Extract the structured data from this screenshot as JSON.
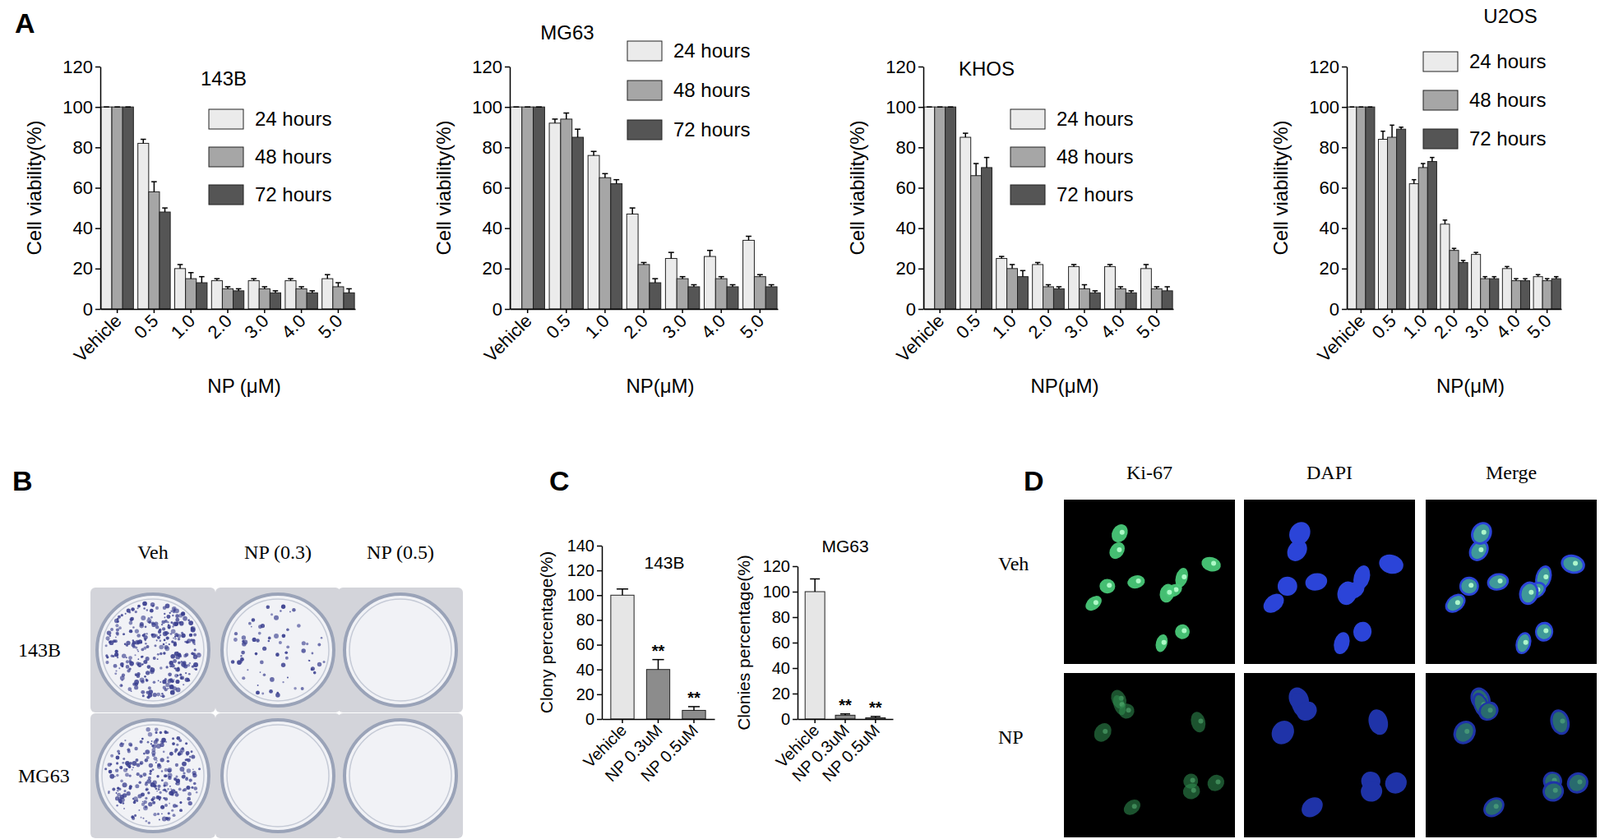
{
  "panel_labels": [
    "A",
    "B",
    "C",
    "D"
  ],
  "chart_data": [
    {
      "type": "bar",
      "title": "143B",
      "x_label": "NP (μM)",
      "y_label": "Cell viability(%)",
      "categories": [
        "Vehicle",
        "0.5",
        "1.0",
        "2.0",
        "3.0",
        "4.0",
        "5.0"
      ],
      "series": [
        {
          "name": "24 hours",
          "color": "#ebebeb",
          "values": [
            100,
            82,
            20,
            14,
            14,
            14,
            15
          ],
          "errors": [
            0,
            2,
            2,
            1,
            1,
            1,
            2
          ]
        },
        {
          "name": "48 hours",
          "color": "#a6a6a6",
          "values": [
            100,
            58,
            15,
            10,
            10,
            10,
            11
          ],
          "errors": [
            0,
            5,
            3,
            1,
            1,
            1,
            2
          ]
        },
        {
          "name": "72 hours",
          "color": "#555555",
          "values": [
            100,
            48,
            13,
            9,
            8,
            8,
            8
          ],
          "errors": [
            0,
            2,
            3,
            1,
            1,
            1,
            2
          ]
        }
      ],
      "ylim": [
        0,
        120
      ],
      "yticks": [
        0,
        20,
        40,
        60,
        80,
        100,
        120
      ],
      "legend": "upper right"
    },
    {
      "type": "bar",
      "title": "MG63",
      "x_label": "NP(μM)",
      "y_label": "Cell viability(%)",
      "categories": [
        "Vehicle",
        "0.5",
        "1.0",
        "2.0",
        "3.0",
        "4.0",
        "5.0"
      ],
      "series": [
        {
          "name": "24 hours",
          "color": "#ebebeb",
          "values": [
            100,
            92,
            76,
            47,
            25,
            26,
            34
          ],
          "errors": [
            0,
            2,
            2,
            3,
            3,
            3,
            2
          ]
        },
        {
          "name": "48 hours",
          "color": "#a6a6a6",
          "values": [
            100,
            94,
            65,
            22,
            15,
            15,
            16
          ],
          "errors": [
            0,
            3,
            2,
            1,
            1,
            1,
            1
          ]
        },
        {
          "name": "72 hours",
          "color": "#555555",
          "values": [
            100,
            85,
            62,
            13,
            11,
            11,
            11
          ],
          "errors": [
            0,
            4,
            2,
            2,
            1,
            1,
            1
          ]
        }
      ],
      "ylim": [
        0,
        120
      ],
      "yticks": [
        0,
        20,
        40,
        60,
        80,
        100,
        120
      ],
      "legend": "upper right"
    },
    {
      "type": "bar",
      "title": "KHOS",
      "x_label": "NP(μM)",
      "y_label": "Cell viability(%)",
      "categories": [
        "Vehicle",
        "0.5",
        "1.0",
        "2.0",
        "3.0",
        "4.0",
        "5.0"
      ],
      "series": [
        {
          "name": "24 hours",
          "color": "#ebebeb",
          "values": [
            100,
            85,
            25,
            22,
            21,
            21,
            20
          ],
          "errors": [
            0,
            2,
            1,
            1,
            1,
            1,
            2
          ]
        },
        {
          "name": "48 hours",
          "color": "#a6a6a6",
          "values": [
            100,
            66,
            20,
            11,
            10,
            10,
            10
          ],
          "errors": [
            0,
            6,
            2,
            1,
            2,
            1,
            1
          ]
        },
        {
          "name": "72 hours",
          "color": "#555555",
          "values": [
            100,
            70,
            16,
            10,
            8,
            8,
            9
          ],
          "errors": [
            0,
            5,
            3,
            1,
            1,
            1,
            2
          ]
        }
      ],
      "ylim": [
        0,
        120
      ],
      "yticks": [
        0,
        20,
        40,
        60,
        80,
        100,
        120
      ],
      "legend": "upper right"
    },
    {
      "type": "bar",
      "title": "U2OS",
      "x_label": "NP(μM)",
      "y_label": "Cell viability(%)",
      "categories": [
        "Vehicle",
        "0.5",
        "1.0",
        "2.0",
        "3.0",
        "4.0",
        "5.0"
      ],
      "series": [
        {
          "name": "24 hours",
          "color": "#ebebeb",
          "values": [
            100,
            84,
            62,
            42,
            27,
            20,
            16
          ],
          "errors": [
            0,
            4,
            2,
            2,
            1,
            1,
            1
          ]
        },
        {
          "name": "48 hours",
          "color": "#a6a6a6",
          "values": [
            100,
            85,
            70,
            29,
            15,
            14,
            14
          ],
          "errors": [
            0,
            6,
            2,
            1,
            1,
            1,
            1
          ]
        },
        {
          "name": "72 hours",
          "color": "#555555",
          "values": [
            100,
            89,
            73,
            23,
            15,
            14,
            15
          ],
          "errors": [
            0,
            1,
            2,
            1,
            1,
            1,
            1
          ]
        }
      ],
      "ylim": [
        0,
        120
      ],
      "yticks": [
        0,
        20,
        40,
        60,
        80,
        100,
        120
      ],
      "legend": "upper right"
    },
    {
      "type": "bar",
      "title": "143B",
      "y_label": "Clony percentage(%)",
      "categories": [
        "Vehicle",
        "NP 0.3uM",
        "NP 0.5uM"
      ],
      "values": [
        100,
        40,
        7
      ],
      "errors": [
        5,
        8,
        3
      ],
      "colors": [
        "#e6e6e6",
        "#8c8c8c",
        "#8c8c8c"
      ],
      "annotations": [
        null,
        "**",
        "**"
      ],
      "ylim": [
        0,
        140
      ],
      "yticks": [
        0,
        20,
        40,
        60,
        80,
        100,
        120,
        140
      ]
    },
    {
      "type": "bar",
      "title": "MG63",
      "y_label": "Clonies percentage(%)",
      "categories": [
        "Vehicle",
        "NP 0.3uM",
        "NP 0.5uM"
      ],
      "values": [
        100,
        3,
        1
      ],
      "errors": [
        10,
        1,
        1
      ],
      "colors": [
        "#e6e6e6",
        "#8c8c8c",
        "#8c8c8c"
      ],
      "annotations": [
        null,
        "**",
        "**"
      ],
      "ylim": [
        0,
        120
      ],
      "yticks": [
        0,
        20,
        40,
        60,
        80,
        100,
        120
      ]
    }
  ],
  "colony_images": {
    "columns": [
      "Veh",
      "NP (0.3)",
      "NP (0.5)"
    ],
    "rows": [
      "143B",
      "MG63"
    ]
  },
  "microscopy": {
    "columns": [
      "Ki-67",
      "DAPI",
      "Merge"
    ],
    "rows": [
      "Veh",
      "NP"
    ]
  }
}
